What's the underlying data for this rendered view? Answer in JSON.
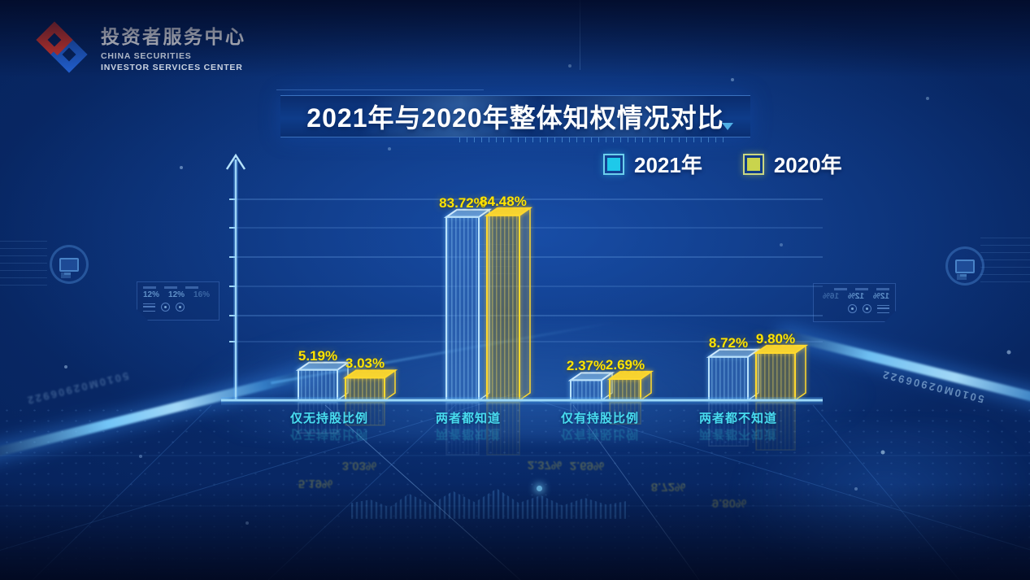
{
  "brand": {
    "name_cn": "投资者服务中心",
    "name_en_line1": "CHINA SECURITIES",
    "name_en_line2": "INVESTOR SERVICES CENTER"
  },
  "title": "2021年与2020年整体知权情况对比",
  "legend": [
    {
      "label": "2021年",
      "color": "#1ec9ea"
    },
    {
      "label": "2020年",
      "color": "#c9d44d"
    }
  ],
  "chart_data": {
    "type": "bar",
    "title": "2021年与2020年整体知权情况对比",
    "categories": [
      "仅无持股比例",
      "两者都知道",
      "仅有持股比例",
      "两者都不知道"
    ],
    "series": [
      {
        "name": "2021年",
        "color": "#1ec9ea",
        "values": [
          5.19,
          83.72,
          2.37,
          8.72
        ],
        "labels": [
          "5.19%",
          "83.72%",
          "2.37%",
          "8.72%"
        ]
      },
      {
        "name": "2020年",
        "color": "#c9d44d",
        "values": [
          3.03,
          84.48,
          2.69,
          9.8
        ],
        "labels": [
          "3.03%",
          "84.48%",
          "2.69%",
          "9.80%"
        ]
      }
    ],
    "unit": "%",
    "ylim": [
      0,
      100
    ],
    "grid": true,
    "legend_position": "top-right"
  },
  "decor": {
    "hud_values": [
      "12%",
      "12%",
      "16%"
    ],
    "serial": "5010M02906922"
  },
  "colors": {
    "value_label": "#ffe400",
    "category_label": "#49dcef",
    "axis": "#9ed6f8",
    "bar_2021_stroke": "#b9e2fc",
    "bar_2020_stroke": "#ffd92e"
  }
}
